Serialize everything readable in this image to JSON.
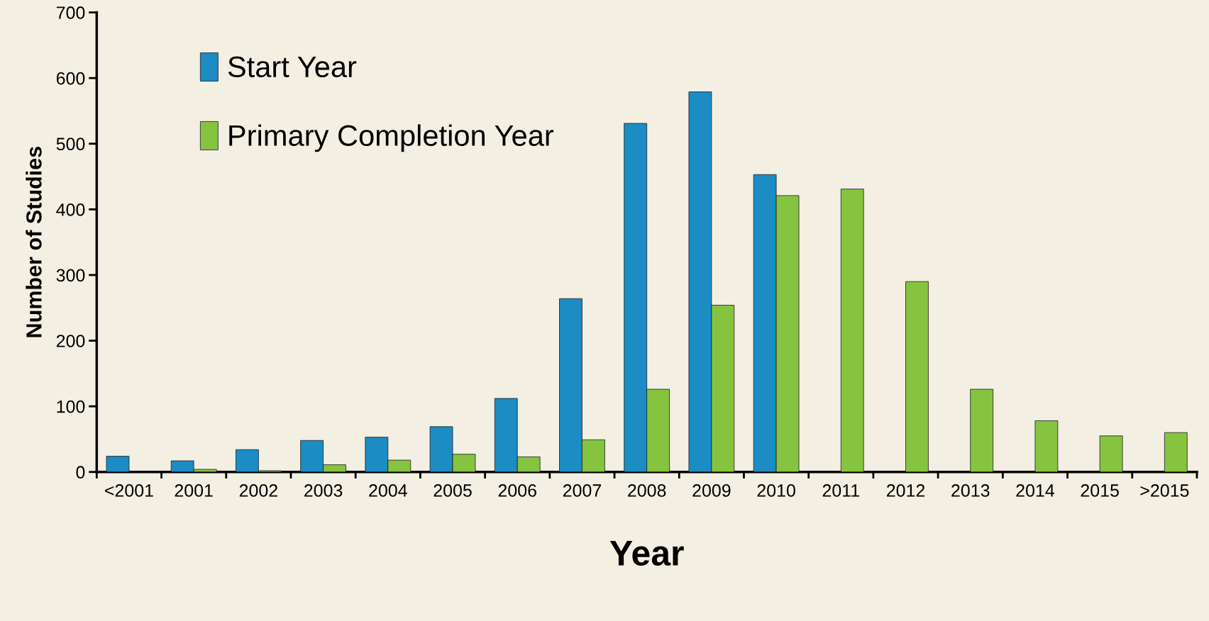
{
  "chart_data": {
    "type": "bar",
    "xlabel": "Year",
    "ylabel": "Number of Studies",
    "categories": [
      "<2001",
      "2001",
      "2002",
      "2003",
      "2004",
      "2005",
      "2006",
      "2007",
      "2008",
      "2009",
      "2010",
      "2011",
      "2012",
      "2013",
      "2014",
      "2015",
      ">2015"
    ],
    "series": [
      {
        "name": "Start Year",
        "color": "#1b8cc4",
        "values": [
          24,
          17,
          34,
          48,
          53,
          69,
          112,
          264,
          531,
          579,
          453,
          null,
          null,
          null,
          null,
          null,
          null
        ]
      },
      {
        "name": "Primary Completion Year",
        "color": "#86c440",
        "values": [
          null,
          4,
          2,
          11,
          18,
          27,
          23,
          49,
          126,
          254,
          421,
          431,
          290,
          126,
          78,
          55,
          60
        ]
      }
    ],
    "ylim": [
      0,
      700
    ],
    "yticks": [
      0,
      100,
      200,
      300,
      400,
      500,
      600,
      700
    ],
    "grid": false,
    "legend": "top left"
  }
}
